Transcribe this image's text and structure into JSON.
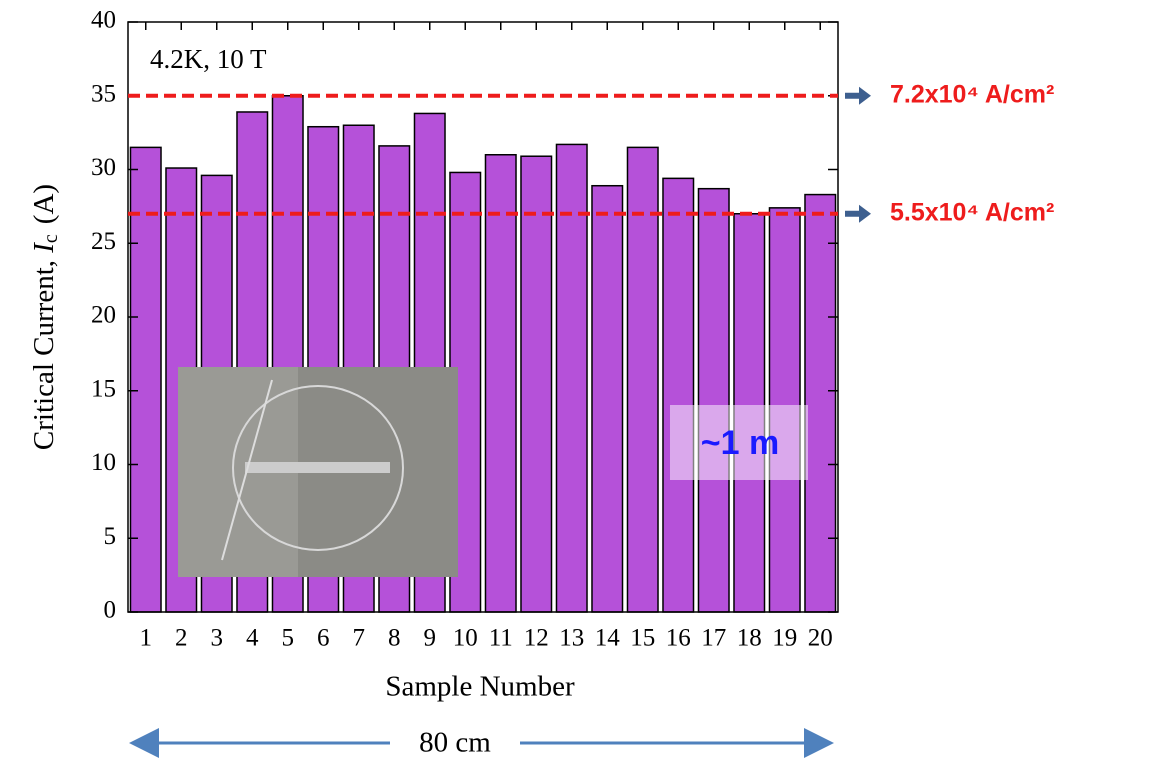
{
  "chart_data": {
    "type": "bar",
    "categories": [
      "1",
      "2",
      "3",
      "4",
      "5",
      "6",
      "7",
      "8",
      "9",
      "10",
      "11",
      "12",
      "13",
      "14",
      "15",
      "16",
      "17",
      "18",
      "19",
      "20"
    ],
    "values": [
      31.5,
      30.1,
      29.6,
      33.9,
      35.0,
      32.9,
      33.0,
      31.6,
      33.8,
      29.8,
      31.0,
      30.9,
      31.7,
      28.9,
      31.5,
      29.4,
      28.7,
      27.0,
      27.4,
      28.3
    ],
    "color": "#b551d9",
    "ylim": [
      0,
      40
    ],
    "yticks": [
      0,
      5,
      10,
      15,
      20,
      25,
      30,
      35,
      40
    ],
    "xlabel": "Sample Number",
    "ylabel": {
      "text": "Critical Current, ",
      "symbol": "I",
      "subscript": "c",
      "unit": "(A)"
    },
    "reference_lines": [
      {
        "value": 35,
        "label": "7.2x10⁴ A/cm²",
        "color": "#ee1c1c"
      },
      {
        "value": 27,
        "label": "5.5x10⁴ A/cm²",
        "color": "#ee1c1c"
      }
    ],
    "annotations": {
      "condition": "4.2K, 10 T",
      "sample_length": "~1 m",
      "span": "80 cm"
    }
  }
}
